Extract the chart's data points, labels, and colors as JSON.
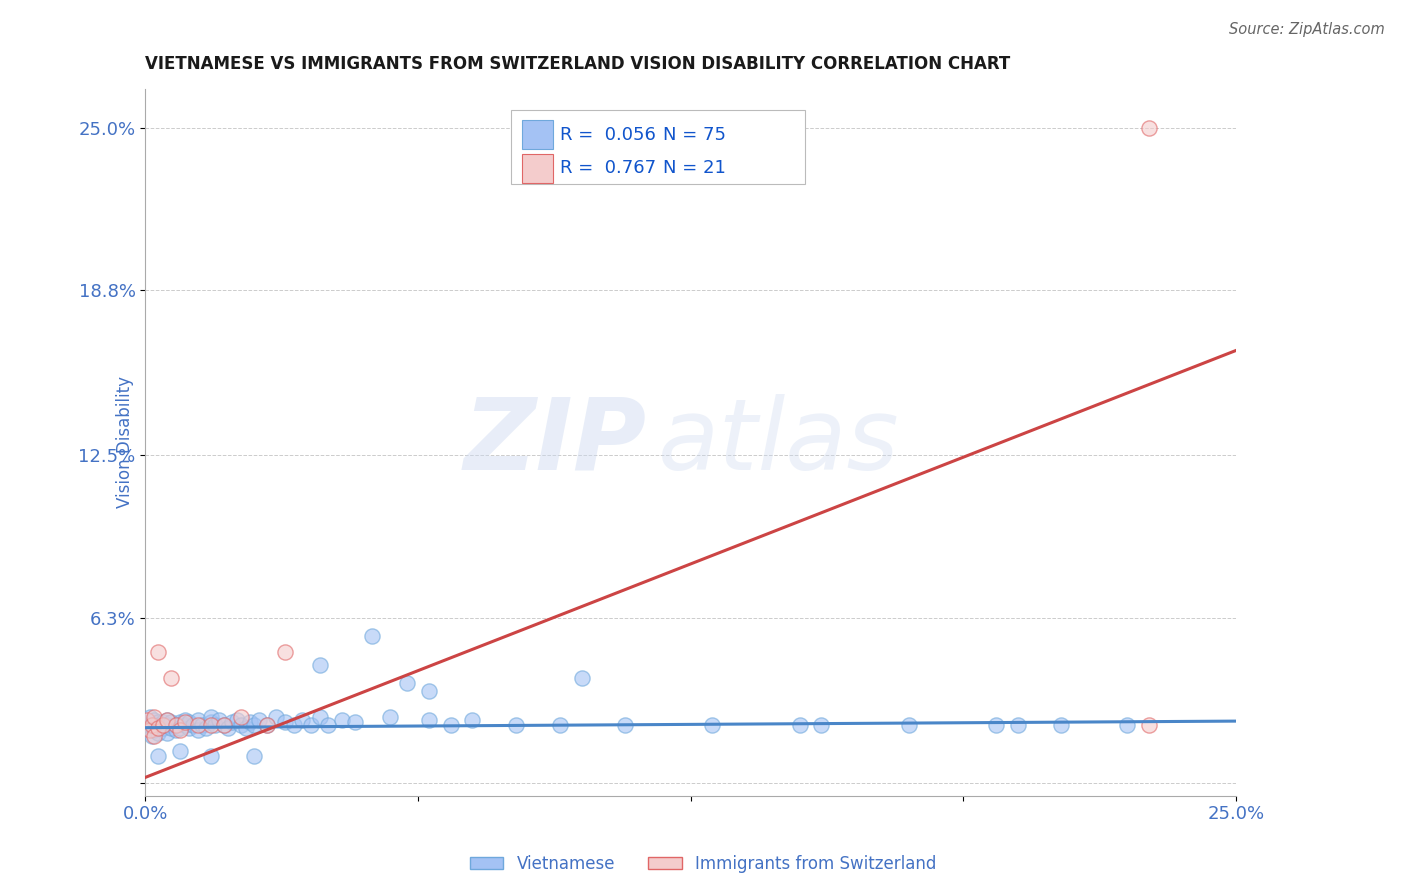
{
  "title": "VIETNAMESE VS IMMIGRANTS FROM SWITZERLAND VISION DISABILITY CORRELATION CHART",
  "source_text": "Source: ZipAtlas.com",
  "ylabel": "Vision Disability",
  "xlim": [
    0.0,
    0.25
  ],
  "ylim": [
    -0.005,
    0.265
  ],
  "yticks": [
    0.0,
    0.063,
    0.125,
    0.188,
    0.25
  ],
  "ytick_labels": [
    "",
    "6.3%",
    "12.5%",
    "18.8%",
    "25.0%"
  ],
  "xticks": [
    0.0,
    0.0625,
    0.125,
    0.1875,
    0.25
  ],
  "xtick_labels": [
    "0.0%",
    "",
    "",
    "",
    "25.0%"
  ],
  "blue_fill_color": "#a4c2f4",
  "blue_edge_color": "#6fa8dc",
  "pink_fill_color": "#f4cccc",
  "pink_edge_color": "#e06666",
  "blue_line_color": "#4a86c8",
  "pink_line_color": "#cc4444",
  "r_blue": 0.056,
  "n_blue": 75,
  "r_pink": 0.767,
  "n_pink": 21,
  "legend_text_color": "#1155cc",
  "title_color": "#1a1a1a",
  "axis_label_color": "#4472c4",
  "tick_color": "#4472c4",
  "grid_color": "#cccccc",
  "blue_trend_x": [
    0.0,
    0.25
  ],
  "blue_trend_y": [
    0.021,
    0.0235
  ],
  "pink_trend_x": [
    0.0,
    0.25
  ],
  "pink_trend_y": [
    0.002,
    0.165
  ],
  "blue_scatter_x": [
    0.0008,
    0.001,
    0.0015,
    0.002,
    0.002,
    0.0025,
    0.003,
    0.003,
    0.004,
    0.004,
    0.005,
    0.005,
    0.005,
    0.006,
    0.006,
    0.007,
    0.007,
    0.008,
    0.008,
    0.009,
    0.009,
    0.01,
    0.01,
    0.011,
    0.012,
    0.012,
    0.013,
    0.014,
    0.015,
    0.015,
    0.016,
    0.017,
    0.018,
    0.019,
    0.02,
    0.021,
    0.022,
    0.023,
    0.024,
    0.025,
    0.026,
    0.028,
    0.03,
    0.032,
    0.034,
    0.036,
    0.038,
    0.04,
    0.042,
    0.045,
    0.048,
    0.052,
    0.056,
    0.06,
    0.065,
    0.07,
    0.075,
    0.085,
    0.095,
    0.11,
    0.13,
    0.155,
    0.175,
    0.195,
    0.21,
    0.225,
    0.003,
    0.008,
    0.015,
    0.025,
    0.04,
    0.065,
    0.1,
    0.15,
    0.2
  ],
  "blue_scatter_y": [
    0.022,
    0.025,
    0.018,
    0.024,
    0.02,
    0.022,
    0.023,
    0.019,
    0.021,
    0.023,
    0.022,
    0.024,
    0.019,
    0.021,
    0.023,
    0.022,
    0.02,
    0.023,
    0.021,
    0.022,
    0.024,
    0.021,
    0.023,
    0.022,
    0.024,
    0.02,
    0.022,
    0.021,
    0.023,
    0.025,
    0.022,
    0.024,
    0.022,
    0.021,
    0.023,
    0.024,
    0.022,
    0.021,
    0.023,
    0.022,
    0.024,
    0.022,
    0.025,
    0.023,
    0.022,
    0.024,
    0.022,
    0.025,
    0.022,
    0.024,
    0.023,
    0.056,
    0.025,
    0.038,
    0.024,
    0.022,
    0.024,
    0.022,
    0.022,
    0.022,
    0.022,
    0.022,
    0.022,
    0.022,
    0.022,
    0.022,
    0.01,
    0.012,
    0.01,
    0.01,
    0.045,
    0.035,
    0.04,
    0.022,
    0.022
  ],
  "pink_scatter_x": [
    0.0005,
    0.001,
    0.0015,
    0.002,
    0.002,
    0.003,
    0.003,
    0.004,
    0.005,
    0.006,
    0.007,
    0.008,
    0.009,
    0.012,
    0.015,
    0.018,
    0.022,
    0.028,
    0.032,
    0.23,
    0.23
  ],
  "pink_scatter_y": [
    0.024,
    0.02,
    0.022,
    0.018,
    0.025,
    0.021,
    0.05,
    0.022,
    0.024,
    0.04,
    0.022,
    0.02,
    0.023,
    0.022,
    0.022,
    0.022,
    0.025,
    0.022,
    0.05,
    0.25,
    0.022
  ]
}
